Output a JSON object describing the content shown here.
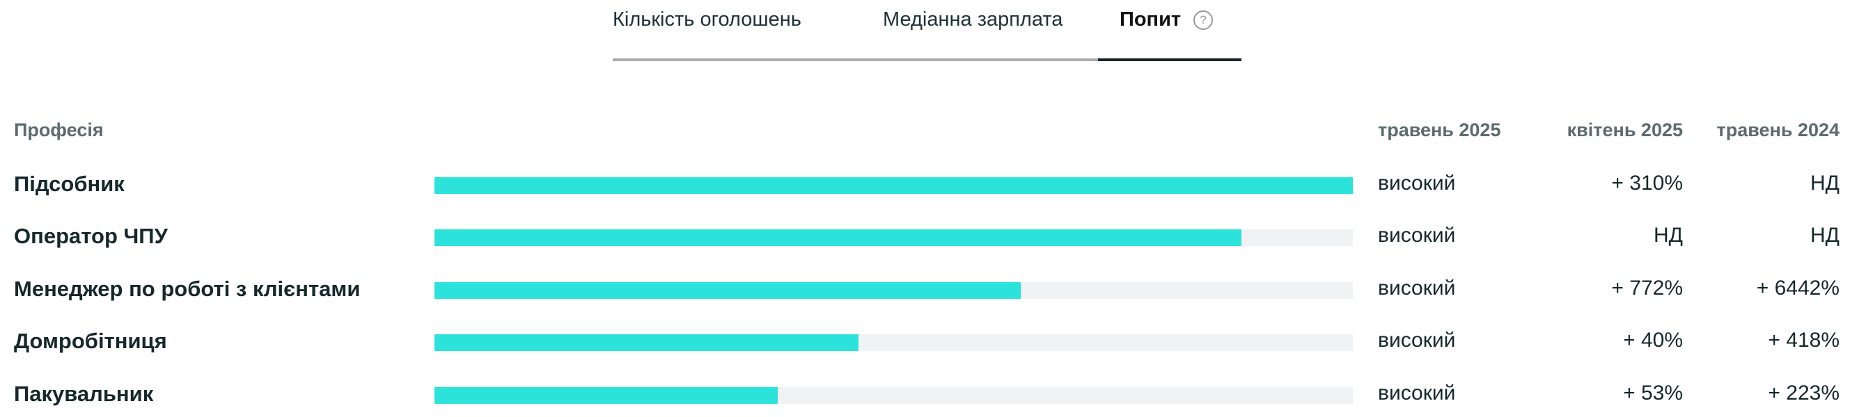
{
  "tabs": [
    {
      "label": "Кількість оголошень"
    },
    {
      "label": "Медіанна зарплата"
    },
    {
      "label": "Попит",
      "active": true
    }
  ],
  "help_icon": "?",
  "colors": {
    "accent": "#2ce3dc",
    "track": "#f1f2f4",
    "text": "#15282b"
  },
  "table": {
    "headers": {
      "profession": "Професія",
      "col1": "травень 2025",
      "col2": "квітень 2025",
      "col3": "травень 2024"
    },
    "rows": [
      {
        "name": "Підсобник",
        "demand_fraction": 1.0,
        "level": "високий",
        "change_month": "+ 310%",
        "change_year": "НД"
      },
      {
        "name": "Оператор ЧПУ",
        "demand_fraction": 0.879,
        "level": "високий",
        "change_month": "НД",
        "change_year": "НД"
      },
      {
        "name": "Менеджер по роботі з клієнтами",
        "demand_fraction": 0.638,
        "level": "високий",
        "change_month": "+ 772%",
        "change_year": "+ 6442%"
      },
      {
        "name": "Домробітниця",
        "demand_fraction": 0.462,
        "level": "високий",
        "change_month": "+ 40%",
        "change_year": "+ 418%"
      },
      {
        "name": "Пакувальник",
        "demand_fraction": 0.374,
        "level": "високий",
        "change_month": "+ 53%",
        "change_year": "+ 223%"
      }
    ]
  }
}
